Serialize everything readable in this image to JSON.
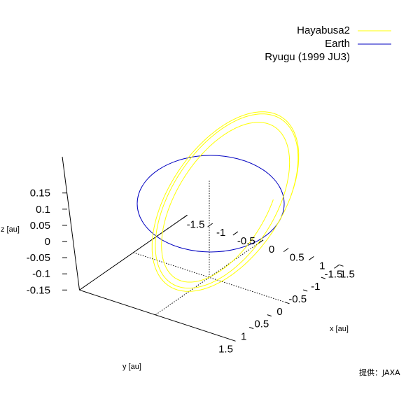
{
  "chart_data": {
    "type": "line",
    "title": "",
    "projection": "3d",
    "xlabel": "x [au]",
    "ylabel": "y [au]",
    "zlabel": "z [au]",
    "xlim": [
      -1.5,
      1.5
    ],
    "ylim": [
      -1.5,
      1.5
    ],
    "zlim": [
      -0.15,
      0.15
    ],
    "x_ticks": [
      "-1.5",
      "-1",
      "-0.5",
      "0",
      "0.5",
      "1",
      "1.5"
    ],
    "y_ticks": [
      "-1.5",
      "-1",
      "-0.5",
      "0",
      "0.5",
      "1",
      "1.5"
    ],
    "z_ticks": [
      "-0.15",
      "-0.1",
      "-0.05",
      "0",
      "0.05",
      "0.1",
      "0.15"
    ],
    "zero_lines": true,
    "legend_position": "top-right",
    "series": [
      {
        "name": "Hayabusa2",
        "color": "#ffff00",
        "orbit": "spiral transfer orbit, ~3 loops",
        "semi_major_au": 1.1,
        "eccentricity": 0.2
      },
      {
        "name": "Earth",
        "color": "#0000c0",
        "orbit": "circle",
        "radius_au": 1.0
      },
      {
        "name": "Ryugu (1999 JU3)",
        "color": "",
        "orbit": "not drawn"
      }
    ]
  },
  "credit": "提供：JAXA"
}
